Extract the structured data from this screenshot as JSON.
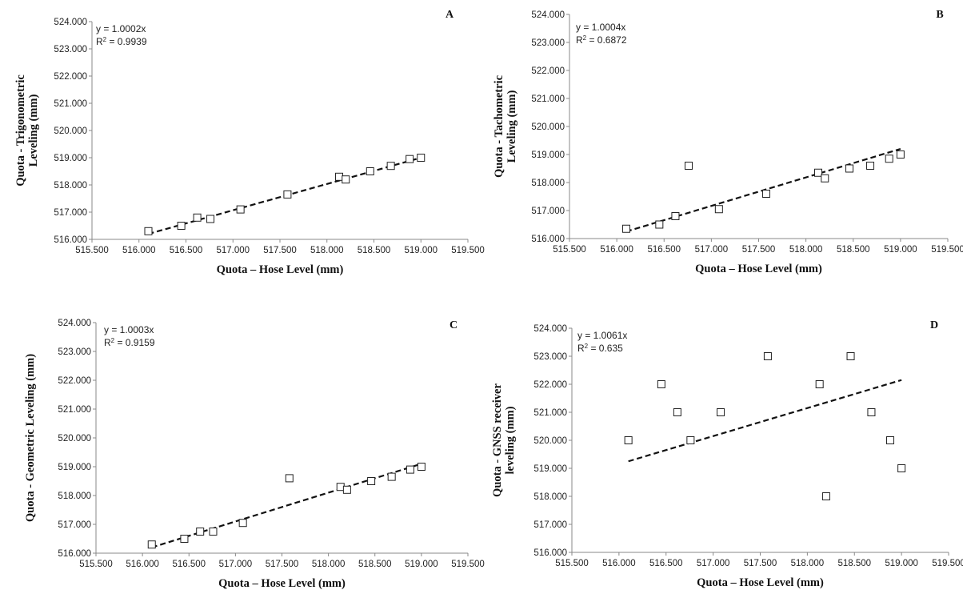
{
  "chart_data": [
    {
      "type": "scatter",
      "panel_label": "A",
      "xlabel": "Quota – Hose Level (mm)",
      "ylabel_lines": [
        "Quota - Trigonometric",
        "Leveling (mm)"
      ],
      "xlim": [
        515.5,
        519.5
      ],
      "ylim": [
        516.0,
        524.0
      ],
      "xticks": [
        "515.500",
        "516.000",
        "516.500",
        "517.000",
        "517.500",
        "518.000",
        "518.500",
        "519.000",
        "519.500"
      ],
      "yticks": [
        "516.000",
        "517.000",
        "518.000",
        "519.000",
        "520.000",
        "521.000",
        "522.000",
        "523.000",
        "524.000"
      ],
      "equation": "y = 1.0002x",
      "r2_value": "0.9939",
      "trendline": {
        "x": [
          516.1,
          519.0
        ],
        "y": [
          516.2,
          519.0
        ]
      },
      "series": [
        {
          "x": [
            516.1,
            516.45,
            516.62,
            516.76,
            517.08,
            517.58,
            518.13,
            518.2,
            518.46,
            518.68,
            518.88,
            519.0
          ],
          "y": [
            516.3,
            516.5,
            516.8,
            516.75,
            517.1,
            517.65,
            518.3,
            518.2,
            518.5,
            518.7,
            518.95,
            519.0
          ]
        }
      ]
    },
    {
      "type": "scatter",
      "panel_label": "B",
      "xlabel": "Quota – Hose Level (mm)",
      "ylabel_lines": [
        "Quota - Tachometric",
        "Leveling (mm)"
      ],
      "xlim": [
        515.5,
        519.5
      ],
      "ylim": [
        516.0,
        524.0
      ],
      "xticks": [
        "515.500",
        "516.000",
        "516.500",
        "517.000",
        "517.500",
        "518.000",
        "518.500",
        "519.000",
        "519.500"
      ],
      "yticks": [
        "516.000",
        "517.000",
        "518.000",
        "519.000",
        "520.000",
        "521.000",
        "522.000",
        "523.000",
        "524.000"
      ],
      "equation": "y = 1.0004x",
      "r2_value": "0.6872",
      "trendline": {
        "x": [
          516.1,
          519.0
        ],
        "y": [
          516.25,
          519.2
        ]
      },
      "series": [
        {
          "x": [
            516.1,
            516.45,
            516.62,
            516.76,
            517.08,
            517.58,
            518.13,
            518.2,
            518.46,
            518.68,
            518.88,
            519.0
          ],
          "y": [
            516.35,
            516.5,
            516.8,
            518.6,
            517.05,
            517.6,
            518.35,
            518.15,
            518.5,
            518.6,
            518.85,
            519.0
          ]
        }
      ]
    },
    {
      "type": "scatter",
      "panel_label": "C",
      "xlabel": "Quota – Hose Level (mm)",
      "ylabel_lines": [
        "Quota - Geometric Leveling (mm)"
      ],
      "xlim": [
        515.5,
        519.5
      ],
      "ylim": [
        516.0,
        524.0
      ],
      "xticks": [
        "515.500",
        "516.000",
        "516.500",
        "517.000",
        "517.500",
        "518.000",
        "518.500",
        "519.000",
        "519.500"
      ],
      "yticks": [
        "516.000",
        "517.000",
        "518.000",
        "519.000",
        "520.000",
        "521.000",
        "522.000",
        "523.000",
        "524.000"
      ],
      "equation": "y = 1.0003x",
      "r2_value": "0.9159",
      "trendline": {
        "x": [
          516.1,
          519.0
        ],
        "y": [
          516.2,
          519.1
        ]
      },
      "series": [
        {
          "x": [
            516.1,
            516.45,
            516.62,
            516.76,
            517.08,
            517.58,
            518.13,
            518.2,
            518.46,
            518.68,
            518.88,
            519.0
          ],
          "y": [
            516.3,
            516.5,
            516.75,
            516.75,
            517.05,
            518.6,
            518.3,
            518.2,
            518.5,
            518.65,
            518.9,
            519.0
          ]
        }
      ]
    },
    {
      "type": "scatter",
      "panel_label": "D",
      "xlabel": "Quota – Hose Level (mm)",
      "ylabel_lines": [
        "Quota - GNSS  receiver",
        "leveling (mm)"
      ],
      "xlim": [
        515.5,
        519.5
      ],
      "ylim": [
        516.0,
        524.0
      ],
      "xticks": [
        "515.500",
        "516.000",
        "516.500",
        "517.000",
        "517.500",
        "518.000",
        "518.500",
        "519.000",
        "519.500"
      ],
      "yticks": [
        "516.000",
        "517.000",
        "518.000",
        "519.000",
        "520.000",
        "521.000",
        "522.000",
        "523.000",
        "524.000"
      ],
      "equation": "y = 1.0061x",
      "r2_value": "0.635",
      "trendline": {
        "x": [
          516.1,
          519.0
        ],
        "y": [
          519.25,
          522.15
        ]
      },
      "series": [
        {
          "x": [
            516.1,
            516.45,
            516.62,
            516.76,
            517.08,
            517.58,
            518.13,
            518.2,
            518.46,
            518.68,
            518.88,
            519.0
          ],
          "y": [
            520.0,
            522.0,
            521.0,
            520.0,
            521.0,
            523.0,
            522.0,
            518.0,
            523.0,
            521.0,
            520.0,
            519.0
          ]
        }
      ]
    }
  ]
}
